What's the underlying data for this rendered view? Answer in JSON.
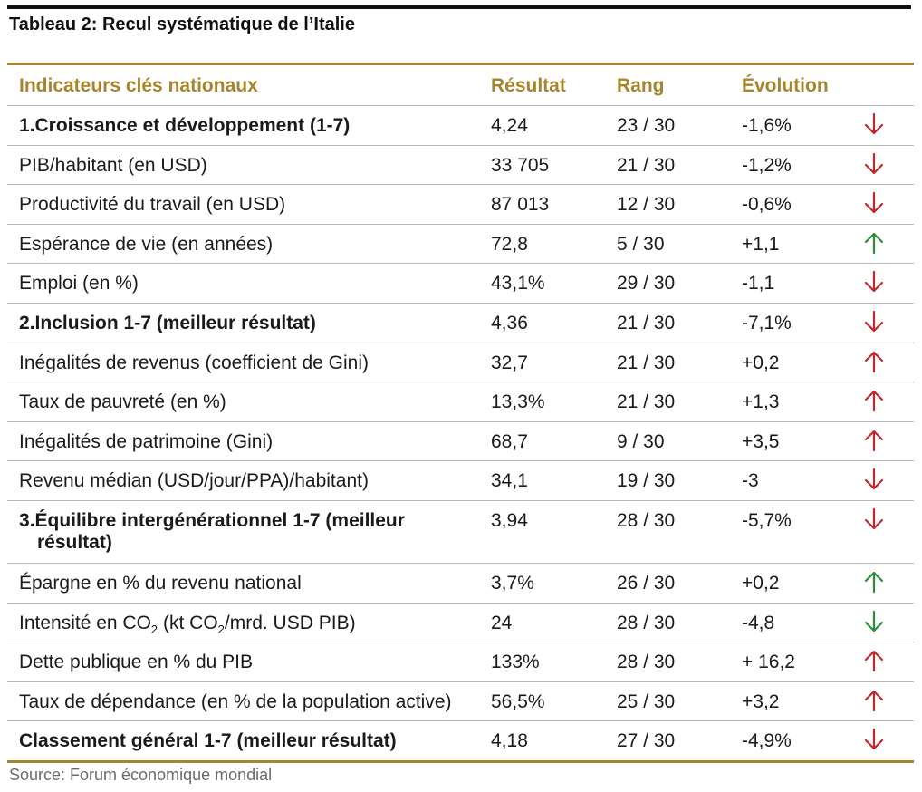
{
  "title": "Tableau 2: Recul systématique de l’Italie",
  "colors": {
    "gold": "#a8842c",
    "arrow_red": "#c0282d",
    "arrow_green": "#2f8a3a"
  },
  "header": {
    "indicator": "Indicateurs clés nationaux",
    "result": "Résultat",
    "rank": "Rang",
    "evolution": "Évolution"
  },
  "rows": [
    {
      "label": "1.Croissance et développement (1-7)",
      "result": "4,24",
      "rank": "23 / 30",
      "evolution": "-1,6%",
      "arrow": "down-red-icon"
    },
    {
      "label": "PIB/habitant (en USD)",
      "result": "33 705",
      "rank": "21 / 30",
      "evolution": "-1,2%",
      "arrow": "down-red-icon"
    },
    {
      "label": "Productivité du travail (en USD)",
      "result": "87 013",
      "rank": "12 / 30",
      "evolution": "-0,6%",
      "arrow": "down-red-icon"
    },
    {
      "label": "Espérance de vie (en années)",
      "result": "72,8",
      "rank": "5 / 30",
      "evolution": "+1,1",
      "arrow": "up-green-icon"
    },
    {
      "label": "Emploi (en %)",
      "result": "43,1%",
      "rank": "29 / 30",
      "evolution": "-1,1",
      "arrow": "down-red-icon"
    },
    {
      "label": "2.Inclusion 1-7 (meilleur résultat)",
      "result": "4,36",
      "rank": "21 / 30",
      "evolution": "-7,1%",
      "arrow": "down-red-icon"
    },
    {
      "label": "Inégalités de revenus (coefficient de Gini)",
      "result": "32,7",
      "rank": "21 / 30",
      "evolution": "+0,2",
      "arrow": "up-red-icon"
    },
    {
      "label": "Taux de pauvreté (en %)",
      "result": "13,3%",
      "rank": "21 / 30",
      "evolution": "+1,3",
      "arrow": "up-red-icon"
    },
    {
      "label": "Inégalités de patrimoine (Gini)",
      "result": "68,7",
      "rank": "9 / 30",
      "evolution": "+3,5",
      "arrow": "up-red-icon"
    },
    {
      "label": "Revenu médian (USD/jour/PPA)/habitant)",
      "result": "34,1",
      "rank": "19 / 30",
      "evolution": "-3",
      "arrow": "down-red-icon"
    },
    {
      "label_line1": "3.Équilibre intergénérationnel 1-7 (meilleur",
      "label_line2": "résultat)",
      "result": "3,94",
      "rank": "28 / 30",
      "evolution": "-5,7%",
      "arrow": "down-red-icon"
    },
    {
      "label": "Épargne en % du revenu national",
      "result": "3,7%",
      "rank": "26 / 30",
      "evolution": "+0,2",
      "arrow": "up-green-icon"
    },
    {
      "label_a": "Intensité en CO",
      "label_sub1": "2",
      "label_b": " (kt CO",
      "label_sub2": "2",
      "label_c": "/mrd. USD PIB)",
      "result": "24",
      "rank": "28 / 30",
      "evolution": "-4,8",
      "arrow": "down-green-icon"
    },
    {
      "label": "Dette publique en % du PIB",
      "result": "133%",
      "rank": "28 / 30",
      "evolution": "+ 16,2",
      "arrow": "up-red-icon"
    },
    {
      "label": "Taux de dépendance (en % de la population active)",
      "result": "56,5%",
      "rank": "25 / 30",
      "evolution": "+3,2",
      "arrow": "up-red-icon"
    },
    {
      "label": "Classement général 1-7 (meilleur résultat)",
      "result": "4,18",
      "rank": "27 / 30",
      "evolution": "-4,9%",
      "arrow": "down-red-icon"
    }
  ],
  "source": "Source: Forum économique mondial"
}
